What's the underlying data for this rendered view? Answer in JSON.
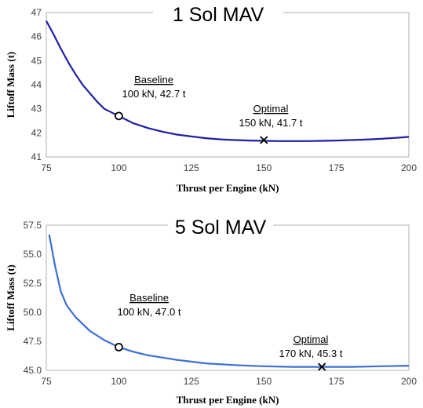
{
  "chart_data": [
    {
      "type": "line",
      "title": "1 Sol MAV",
      "xlabel": "Thrust per Engine (kN)",
      "ylabel": "Liftoff Mass (t)",
      "xlim": [
        75,
        200
      ],
      "ylim": [
        41,
        47
      ],
      "x_ticks": [
        "75",
        "100",
        "125",
        "150",
        "175",
        "200"
      ],
      "y_ticks": [
        "41",
        "42",
        "43",
        "44",
        "45",
        "46",
        "47"
      ],
      "grid": false,
      "series": [
        {
          "color": "#1f1fa6",
          "x": [
            75,
            77.5,
            80,
            82.5,
            85,
            87.5,
            90,
            92.5,
            95,
            97.5,
            100,
            105,
            110,
            115,
            120,
            125,
            130,
            135,
            140,
            145,
            150,
            155,
            160,
            165,
            170,
            175,
            180,
            185,
            190,
            195,
            200
          ],
          "y": [
            46.65,
            46.1,
            45.5,
            44.95,
            44.45,
            44.0,
            43.65,
            43.3,
            43.0,
            42.85,
            42.7,
            42.4,
            42.2,
            42.05,
            41.93,
            41.85,
            41.78,
            41.73,
            41.7,
            41.68,
            41.67,
            41.66,
            41.66,
            41.66,
            41.67,
            41.68,
            41.7,
            41.72,
            41.75,
            41.79,
            41.83
          ]
        }
      ],
      "points": [
        {
          "x": 100,
          "y": 42.7,
          "marker": "circle",
          "label_title": "Baseline",
          "label_text": "100 kN, 42.7 t"
        },
        {
          "x": 150,
          "y": 41.7,
          "marker": "x",
          "label_title": "Optimal",
          "label_text": "150 kN, 41.7 t"
        }
      ]
    },
    {
      "type": "line",
      "title": "5 Sol MAV",
      "xlabel": "Thrust per Engine (kN)",
      "ylabel": "Liftoff Mass (t)",
      "xlim": [
        75,
        200
      ],
      "ylim": [
        45.0,
        57.5
      ],
      "x_ticks": [
        "75",
        "100",
        "125",
        "150",
        "175",
        "200"
      ],
      "y_ticks": [
        "45.0",
        "47.5",
        "50.0",
        "52.5",
        "55.0",
        "57.5"
      ],
      "grid": false,
      "series": [
        {
          "color": "#3a6fd6",
          "x": [
            76,
            78,
            80,
            82,
            85,
            90,
            95,
            100,
            105,
            110,
            115,
            120,
            125,
            130,
            140,
            150,
            160,
            170,
            180,
            190,
            200
          ],
          "y": [
            56.7,
            54.0,
            51.8,
            50.6,
            49.6,
            48.4,
            47.6,
            47.0,
            46.6,
            46.3,
            46.1,
            45.9,
            45.75,
            45.6,
            45.45,
            45.35,
            45.3,
            45.3,
            45.3,
            45.35,
            45.4
          ]
        }
      ],
      "points": [
        {
          "x": 100,
          "y": 47.0,
          "marker": "circle",
          "label_title": "Baseline",
          "label_text": "100 kN, 47.0 t"
        },
        {
          "x": 170,
          "y": 45.3,
          "marker": "x",
          "label_title": "Optimal",
          "label_text": "170 kN, 45.3 t"
        }
      ]
    }
  ]
}
